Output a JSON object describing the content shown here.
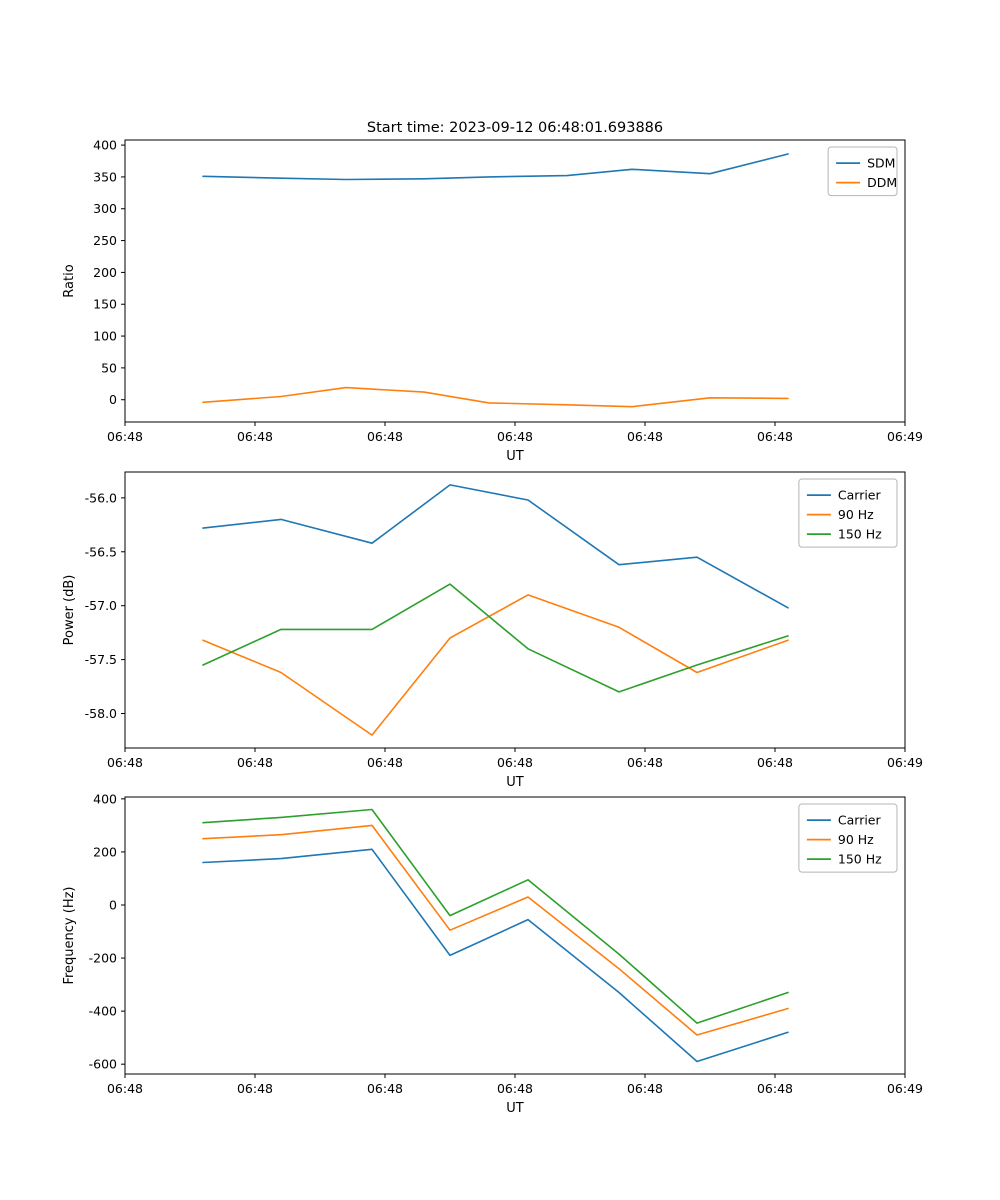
{
  "figure": {
    "title": "Start time: 2023-09-12 06:48:01.693886",
    "background": "#ffffff"
  },
  "colors": {
    "blue": "#1f77b4",
    "orange": "#ff7f0e",
    "green": "#2ca02c"
  },
  "chart_data": [
    {
      "type": "line",
      "title": "Start time: 2023-09-12 06:48:01.693886",
      "xlabel": "UT",
      "ylabel": "Ratio",
      "xlim": [
        0,
        60
      ],
      "ylim": [
        -35,
        408
      ],
      "yticks": [
        0,
        50,
        100,
        150,
        200,
        250,
        300,
        350,
        400
      ],
      "xticks": [
        0,
        10,
        20,
        30,
        40,
        50,
        60
      ],
      "xtick_labels": [
        "06:48",
        "06:48",
        "06:48",
        "06:48",
        "06:48",
        "06:48",
        "06:49"
      ],
      "grid": false,
      "legend_position": "upper right",
      "x": [
        6,
        12,
        17,
        23,
        28,
        34,
        39,
        45,
        51
      ],
      "series": [
        {
          "name": "SDM",
          "color": "#1f77b4",
          "values": [
            351,
            348,
            346,
            347,
            350,
            352,
            362,
            355,
            386
          ]
        },
        {
          "name": "DDM",
          "color": "#ff7f0e",
          "values": [
            -4,
            5,
            19,
            12,
            -5,
            -8,
            -11,
            3,
            2
          ]
        }
      ]
    },
    {
      "type": "line",
      "title": "",
      "xlabel": "UT",
      "ylabel": "Power (dB)",
      "xlim": [
        0,
        60
      ],
      "ylim": [
        -58.32,
        -55.76
      ],
      "yticks": [
        -58.0,
        -57.5,
        -57.0,
        -56.5,
        -56.0
      ],
      "ytick_labels": [
        "-58.0",
        "-57.5",
        "-57.0",
        "-56.5",
        "-56.0"
      ],
      "xticks": [
        0,
        10,
        20,
        30,
        40,
        50,
        60
      ],
      "xtick_labels": [
        "06:48",
        "06:48",
        "06:48",
        "06:48",
        "06:48",
        "06:48",
        "06:49"
      ],
      "grid": false,
      "legend_position": "upper right",
      "x": [
        6,
        12,
        19,
        25,
        31,
        38,
        44,
        51
      ],
      "series": [
        {
          "name": "Carrier",
          "color": "#1f77b4",
          "values": [
            -56.28,
            -56.2,
            -56.42,
            -55.88,
            -56.02,
            -56.62,
            -56.55,
            -57.02
          ]
        },
        {
          "name": "90 Hz",
          "color": "#ff7f0e",
          "values": [
            -57.32,
            -57.62,
            -58.2,
            -57.3,
            -56.9,
            -57.2,
            -57.62,
            -57.32
          ]
        },
        {
          "name": "150 Hz",
          "color": "#2ca02c",
          "values": [
            -57.55,
            -57.22,
            -57.22,
            -56.8,
            -57.4,
            -57.8,
            -57.55,
            -57.28
          ]
        }
      ]
    },
    {
      "type": "line",
      "title": "",
      "xlabel": "UT",
      "ylabel": "Frequency (Hz)",
      "xlim": [
        0,
        60
      ],
      "ylim": [
        -637,
        407
      ],
      "yticks": [
        -600,
        -400,
        -200,
        0,
        200,
        400
      ],
      "ytick_labels": [
        "-600",
        "-400",
        "-200",
        "0",
        "200",
        "400"
      ],
      "xticks": [
        0,
        10,
        20,
        30,
        40,
        50,
        60
      ],
      "xtick_labels": [
        "06:48",
        "06:48",
        "06:48",
        "06:48",
        "06:48",
        "06:48",
        "06:49"
      ],
      "grid": false,
      "legend_position": "upper right",
      "x": [
        6,
        12,
        19,
        25,
        31,
        38,
        44,
        51
      ],
      "series": [
        {
          "name": "Carrier",
          "color": "#1f77b4",
          "values": [
            160,
            175,
            210,
            -190,
            -55,
            -330,
            -590,
            -480
          ]
        },
        {
          "name": "90 Hz",
          "color": "#ff7f0e",
          "values": [
            250,
            265,
            300,
            -95,
            30,
            -240,
            -490,
            -390
          ]
        },
        {
          "name": "150 Hz",
          "color": "#2ca02c",
          "values": [
            310,
            330,
            360,
            -40,
            95,
            -185,
            -445,
            -330
          ]
        }
      ]
    }
  ]
}
